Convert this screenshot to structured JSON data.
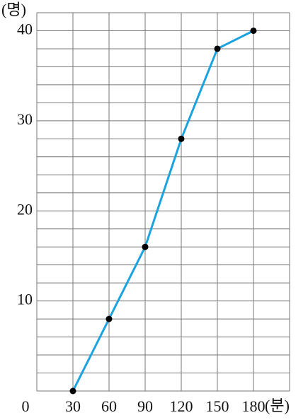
{
  "chart_data": {
    "type": "line",
    "y_unit": "(명)",
    "x_unit": "(분)",
    "x": [
      30,
      60,
      90,
      120,
      150,
      180
    ],
    "series": [
      {
        "color": "#1ba3e0",
        "values": [
          0,
          8,
          16,
          28,
          38,
          40
        ]
      }
    ],
    "xlim": [
      0,
      210
    ],
    "ylim": [
      0,
      42
    ],
    "xticks": [
      30,
      60,
      90,
      120,
      150,
      180
    ],
    "yticks": [
      0,
      10,
      20,
      30,
      40
    ],
    "xgrid": [
      0,
      30,
      60,
      90,
      120,
      150,
      180,
      210
    ],
    "ygrid": [
      0,
      2,
      4,
      6,
      8,
      10,
      12,
      14,
      16,
      18,
      20,
      22,
      24,
      26,
      28,
      30,
      32,
      34,
      36,
      38,
      40,
      42
    ],
    "grid": true,
    "marker_color": "#000000"
  }
}
